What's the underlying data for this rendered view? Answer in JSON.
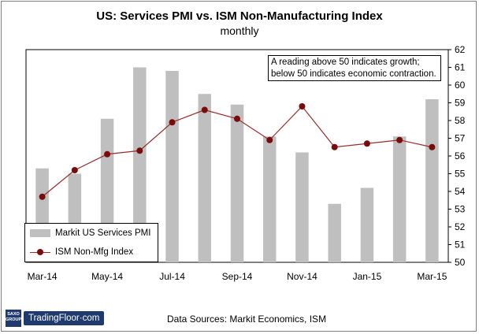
{
  "chart_data": {
    "type": "bar",
    "title": "US: Services PMI vs. ISM Non-Manufacturing Index",
    "subtitle": "monthly",
    "categories": [
      "Mar-14",
      "Apr-14",
      "May-14",
      "Jun-14",
      "Jul-14",
      "Aug-14",
      "Sep-14",
      "Oct-14",
      "Nov-14",
      "Dec-14",
      "Jan-15",
      "Feb-15",
      "Mar-15"
    ],
    "x_tick_labels": [
      "Mar-14",
      "May-14",
      "Jul-14",
      "Sep-14",
      "Nov-14",
      "Jan-15",
      "Mar-15"
    ],
    "ylim": [
      50,
      62
    ],
    "y_ticks": [
      50,
      51,
      52,
      53,
      54,
      55,
      56,
      57,
      58,
      59,
      60,
      61,
      62
    ],
    "y_axis_position": "right",
    "grid": false,
    "legend_position": "bottom-left",
    "series": [
      {
        "name": "Markit US Services PMI",
        "type": "bar",
        "color": "#bfbfbf",
        "values": [
          55.3,
          55.0,
          58.1,
          61.0,
          60.8,
          59.5,
          58.9,
          57.1,
          56.2,
          53.3,
          54.2,
          57.1,
          59.2
        ]
      },
      {
        "name": "ISM Non-Mfg Index",
        "type": "line",
        "color": "#9b2c2c",
        "marker_color": "#7a0b0b",
        "values": [
          53.7,
          55.2,
          56.1,
          56.3,
          57.9,
          58.6,
          58.1,
          56.9,
          58.8,
          56.5,
          56.7,
          56.9,
          56.5
        ]
      }
    ]
  },
  "note": {
    "line1": "A reading above 50 indicates growth;",
    "line2": "below  50 indicates economic contraction."
  },
  "source_text": "Data Sources:  Markit Economics,  ISM",
  "logo": {
    "brand_top": "SAXO",
    "brand_bottom": "GROUP",
    "name": "TradingFloor·com"
  }
}
